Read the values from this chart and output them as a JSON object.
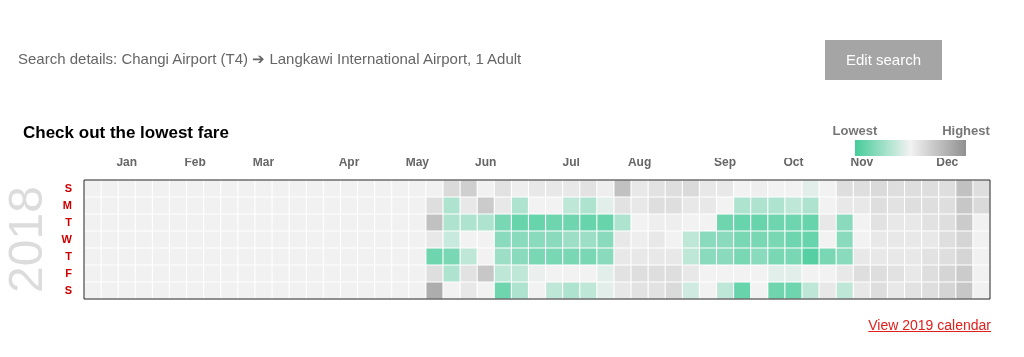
{
  "chart_data": {
    "type": "heatmap",
    "title": "Check out the lowest fare",
    "ylabel": "2018",
    "annotations": [
      "Search details: Changi Airport (T4) ➔ Langkawi International Airport, 1 Adult",
      "Edit search",
      "View 2019 calendar"
    ],
    "categories": [
      null,
      null,
      "Jan",
      null,
      null,
      null,
      "Feb",
      null,
      null,
      null,
      "Mar",
      null,
      null,
      null,
      null,
      "Apr",
      null,
      null,
      null,
      "May",
      null,
      null,
      null,
      "Jun",
      null,
      null,
      null,
      null,
      "Jul",
      null,
      null,
      null,
      "Aug",
      null,
      null,
      null,
      null,
      "Sep",
      null,
      null,
      null,
      "Oct",
      null,
      null,
      null,
      "Nov",
      null,
      null,
      null,
      null,
      "Dec",
      null,
      null
    ],
    "y_categories": [
      "S",
      "M",
      "T",
      "W",
      "T",
      "F",
      "S"
    ],
    "clim": [
      0,
      1
    ],
    "cticks": [
      {
        "value": 0,
        "label": "Lowest"
      },
      {
        "value": 1,
        "label": "Highest"
      }
    ],
    "cells": [
      [
        null,
        null,
        null,
        null,
        null,
        null,
        null,
        null,
        null,
        null,
        null,
        null,
        null,
        null,
        null,
        null,
        null,
        null,
        null,
        null,
        null,
        0.62,
        0.68,
        null,
        0.58,
        0.52,
        0.55,
        0.55,
        0.55,
        0.58,
        0.52,
        0.75,
        0.55,
        0.58,
        0.6,
        0.62,
        0.55,
        0.55,
        0.5,
        0.52,
        0.5,
        0.5,
        0.45,
        0.5,
        0.6,
        0.6,
        0.62,
        0.6,
        0.6,
        0.6,
        0.6,
        0.75,
        0.6
      ],
      [
        null,
        null,
        null,
        null,
        null,
        null,
        null,
        null,
        null,
        null,
        null,
        null,
        null,
        null,
        null,
        null,
        null,
        null,
        null,
        null,
        0.6,
        0.3,
        0.55,
        0.7,
        0.55,
        0.3,
        0.5,
        0.5,
        0.35,
        0.3,
        0.45,
        0.58,
        0.55,
        0.6,
        0.6,
        0.55,
        0.55,
        0.5,
        0.3,
        0.3,
        0.3,
        0.35,
        0.3,
        0.5,
        0.55,
        0.55,
        0.6,
        0.58,
        0.6,
        0.6,
        0.6,
        0.72,
        0.62
      ],
      [
        null,
        null,
        null,
        null,
        null,
        null,
        null,
        null,
        null,
        null,
        null,
        null,
        null,
        null,
        null,
        null,
        null,
        null,
        null,
        null,
        0.75,
        0.3,
        0.3,
        0.3,
        0.15,
        0.1,
        0.1,
        0.12,
        0.12,
        0.1,
        0.1,
        0.3,
        0.5,
        0.52,
        0.52,
        0.5,
        0.5,
        0.12,
        0.1,
        0.1,
        0.12,
        0.12,
        0.1,
        0.55,
        0.2,
        0.5,
        0.58,
        0.55,
        0.55,
        0.58,
        0.6,
        0.7,
        null
      ],
      [
        null,
        null,
        null,
        null,
        null,
        null,
        null,
        null,
        null,
        null,
        null,
        null,
        null,
        null,
        null,
        null,
        null,
        null,
        null,
        null,
        0.55,
        0.38,
        0.5,
        0.5,
        0.2,
        0.2,
        0.2,
        0.2,
        0.25,
        0.25,
        0.2,
        0.55,
        0.52,
        0.55,
        0.5,
        0.35,
        0.2,
        0.2,
        0.15,
        0.15,
        0.15,
        0.12,
        0.1,
        0.5,
        0.2,
        0.5,
        0.55,
        0.55,
        0.55,
        0.55,
        0.6,
        0.65,
        null
      ],
      [
        null,
        null,
        null,
        null,
        null,
        null,
        null,
        null,
        null,
        null,
        null,
        null,
        null,
        null,
        null,
        null,
        null,
        null,
        null,
        null,
        0.12,
        0.15,
        0.35,
        0.5,
        0.25,
        0.2,
        0.15,
        0.15,
        0.15,
        0.15,
        0.2,
        0.55,
        0.55,
        0.55,
        0.55,
        0.35,
        0.2,
        0.2,
        0.15,
        0.2,
        0.15,
        0.15,
        0.05,
        0.15,
        0.2,
        0.55,
        0.55,
        0.55,
        0.55,
        0.58,
        0.6,
        0.65,
        null
      ],
      [
        null,
        null,
        null,
        null,
        null,
        null,
        null,
        null,
        null,
        null,
        null,
        null,
        null,
        null,
        null,
        null,
        null,
        null,
        null,
        null,
        0.6,
        0.3,
        0.58,
        0.72,
        0.35,
        0.35,
        0.48,
        0.5,
        0.5,
        0.5,
        0.45,
        0.58,
        0.6,
        0.6,
        0.6,
        0.55,
        0.5,
        0.5,
        0.5,
        0.5,
        0.45,
        0.45,
        0.5,
        0.5,
        0.55,
        0.6,
        0.6,
        0.58,
        0.55,
        0.6,
        0.65,
        0.7,
        null
      ],
      [
        null,
        null,
        null,
        null,
        null,
        null,
        null,
        null,
        null,
        null,
        null,
        null,
        null,
        null,
        null,
        null,
        null,
        null,
        null,
        null,
        0.85,
        0.5,
        0.55,
        0.5,
        0.12,
        0.3,
        0.5,
        0.35,
        0.3,
        0.35,
        0.45,
        0.55,
        0.58,
        0.58,
        0.62,
        0.4,
        0.5,
        0.35,
        0.1,
        0.5,
        0.12,
        0.12,
        0.35,
        0.55,
        0.35,
        0.55,
        0.6,
        0.55,
        0.58,
        0.6,
        0.65,
        0.72,
        null
      ]
    ]
  }
}
